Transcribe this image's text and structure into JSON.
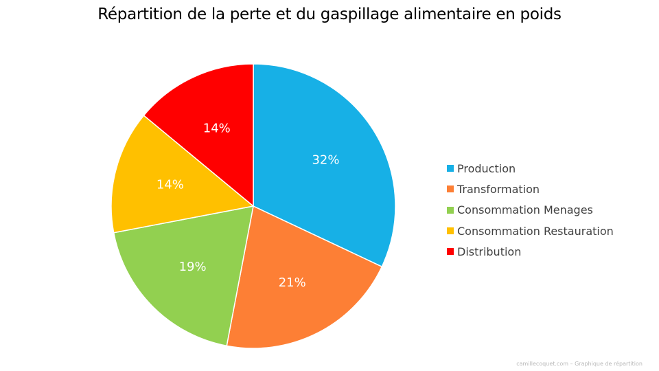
{
  "chart_data": {
    "type": "pie",
    "title": "Répartition de la perte et du gaspillage alimentaire en poids",
    "legend_position": "right",
    "slices": [
      {
        "name": "Production",
        "value": 32,
        "label": "32%",
        "color": "#17B0E6"
      },
      {
        "name": "Transformation",
        "value": 21,
        "label": "21%",
        "color": "#FD7F35"
      },
      {
        "name": "Consommation Menages",
        "value": 19,
        "label": "19%",
        "color": "#92D050"
      },
      {
        "name": "Consommation Restauration",
        "value": 14,
        "label": "14%",
        "color": "#FFC000"
      },
      {
        "name": "Distribution",
        "value": 14,
        "label": "14%",
        "color": "#FF0000"
      }
    ]
  },
  "footer": {
    "credit": "camillecoquet.com – Graphique de répartition"
  }
}
